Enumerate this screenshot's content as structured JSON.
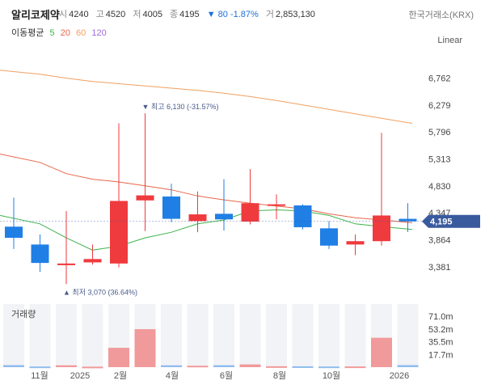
{
  "header": {
    "name": "알리코제약",
    "open_label": "시",
    "open": "4240",
    "high_label": "고",
    "high": "4520",
    "low_label": "저",
    "low": "4005",
    "close_label": "종",
    "close": "4195",
    "change": "▼ 80",
    "change_pct": "-1.87%",
    "volume_label": "거",
    "volume": "2,853,130",
    "exchange": "한국거래소(KRX)"
  },
  "ma_legend": {
    "title": "이동평균",
    "items": [
      {
        "label": "5",
        "color": "#3cb44b"
      },
      {
        "label": "20",
        "color": "#e8664a"
      },
      {
        "label": "60",
        "color": "#f0a060"
      },
      {
        "label": "120",
        "color": "#9b6be0"
      }
    ]
  },
  "scale_mode": "Linear",
  "volume_title": "거래량",
  "colors": {
    "up": "#ef3a3e",
    "down": "#1f7fe5",
    "ma5": "#3cb44b",
    "ma20": "#e8664a",
    "ma60": "#f0a060",
    "price_tag": "#3a5a9e"
  },
  "chart_data": {
    "type": "candlestick",
    "price_axis": {
      "ylim": [
        3090,
        7000
      ],
      "ticks": [
        "6,762",
        "6,279",
        "5,796",
        "5,313",
        "4,830",
        "4,347",
        "3,864",
        "3,381"
      ],
      "tick_values": [
        6762,
        6279,
        5796,
        5313,
        4830,
        4347,
        3864,
        3381
      ]
    },
    "x_ticks": [
      "11월",
      "2025",
      "2월",
      "4월",
      "6월",
      "8월",
      "10월",
      "2026"
    ],
    "current_price": {
      "value": 4195,
      "label": "4,195"
    },
    "annotations": [
      {
        "text": "▼ 최고 6,130 (-31.57%)",
        "candle": 5,
        "at": "high"
      },
      {
        "text": "▲ 최저 3,070 (36.64%)",
        "candle": 2,
        "at": "low"
      }
    ],
    "candles": [
      {
        "open": 4100,
        "high": 4620,
        "low": 3700,
        "close": 3900
      },
      {
        "open": 3780,
        "high": 3960,
        "low": 3290,
        "close": 3450
      },
      {
        "open": 3410,
        "high": 4380,
        "low": 3070,
        "close": 3440
      },
      {
        "open": 3460,
        "high": 3780,
        "low": 3420,
        "close": 3520
      },
      {
        "open": 3440,
        "high": 5950,
        "low": 3370,
        "close": 4560
      },
      {
        "open": 4570,
        "high": 6130,
        "low": 4020,
        "close": 4660
      },
      {
        "open": 4640,
        "high": 4870,
        "low": 4180,
        "close": 4240
      },
      {
        "open": 4200,
        "high": 4730,
        "low": 4000,
        "close": 4320
      },
      {
        "open": 4330,
        "high": 4950,
        "low": 4030,
        "close": 4230
      },
      {
        "open": 4190,
        "high": 5130,
        "low": 4140,
        "close": 4520
      },
      {
        "open": 4480,
        "high": 4680,
        "low": 4230,
        "close": 4500
      },
      {
        "open": 4480,
        "high": 4500,
        "low": 4050,
        "close": 4090
      },
      {
        "open": 4070,
        "high": 4200,
        "low": 3700,
        "close": 3760
      },
      {
        "open": 3780,
        "high": 3960,
        "low": 3590,
        "close": 3840
      },
      {
        "open": 3840,
        "high": 5780,
        "low": 3760,
        "close": 4300
      },
      {
        "open": 4240,
        "high": 4520,
        "low": 4005,
        "close": 4195
      }
    ],
    "ma_series": [
      {
        "name": "5",
        "color": "#3cb44b",
        "values": [
          4300,
          4150,
          3900,
          3680,
          3750,
          3900,
          4000,
          4150,
          4220,
          4380,
          4400,
          4380,
          4300,
          4150,
          4100,
          4050
        ]
      },
      {
        "name": "20",
        "color": "#e8664a",
        "values": [
          5400,
          5250,
          5050,
          4950,
          4900,
          4830,
          4760,
          4650,
          4580,
          4520,
          4470,
          4420,
          4330,
          4260,
          4220,
          4170
        ]
      },
      {
        "name": "60",
        "color": "#f0a060",
        "values": [
          6900,
          6830,
          6760,
          6700,
          6660,
          6620,
          6580,
          6540,
          6490,
          6430,
          6360,
          6280,
          6200,
          6120,
          6040,
          5950
        ]
      }
    ],
    "volume": {
      "axis_ticks": [
        "71.0m",
        "53.2m",
        "35.5m",
        "17.7m"
      ],
      "tick_values": [
        71000000,
        53200000,
        35500000,
        17700000
      ],
      "ylim": [
        0,
        88000000
      ],
      "values": [
        2800000,
        900000,
        2600000,
        700000,
        27000000,
        53000000,
        2600000,
        2000000,
        2700000,
        3800000,
        1300000,
        1200000,
        900000,
        1000000,
        41000000,
        2853130
      ],
      "dir": [
        "down",
        "down",
        "up",
        "up",
        "up",
        "up",
        "down",
        "up",
        "down",
        "up",
        "up",
        "down",
        "down",
        "up",
        "up",
        "down"
      ]
    }
  }
}
